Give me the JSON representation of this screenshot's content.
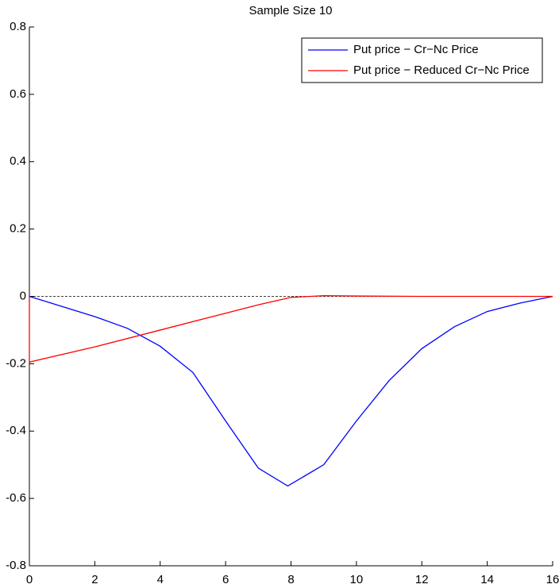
{
  "chart_data": {
    "type": "line",
    "title": "Sample Size 10",
    "x_series": {
      "blue": [
        0,
        1,
        2,
        3,
        4,
        5,
        6,
        7,
        7.9,
        9,
        10,
        11,
        12,
        13,
        14,
        15,
        16
      ],
      "red": [
        0,
        0,
        2,
        4,
        6,
        7,
        8,
        9,
        10,
        12,
        16
      ]
    },
    "series": [
      {
        "name": "Put price − Cr−Nc Price",
        "color": "#0000ff",
        "values": [
          0,
          -0.03,
          -0.06,
          -0.095,
          -0.148,
          -0.226,
          -0.37,
          -0.51,
          -0.563,
          -0.5,
          -0.37,
          -0.25,
          -0.155,
          -0.09,
          -0.045,
          -0.02,
          0
        ]
      },
      {
        "name": "Put price − Reduced Cr−Nc Price",
        "color": "#ff0000",
        "values": [
          0,
          -0.195,
          -0.15,
          -0.1,
          -0.05,
          -0.025,
          -0.003,
          0.002,
          0.001,
          0,
          0
        ]
      }
    ],
    "xlim": [
      0,
      16
    ],
    "xticks": [
      0,
      2,
      4,
      6,
      8,
      10,
      12,
      14,
      16
    ],
    "ylim": [
      -0.8,
      0.8
    ],
    "yticks": [
      -0.8,
      -0.6,
      -0.4,
      -0.2,
      0,
      0.2,
      0.4,
      0.6,
      0.8
    ],
    "zero_line": true,
    "legend": "top-right"
  }
}
